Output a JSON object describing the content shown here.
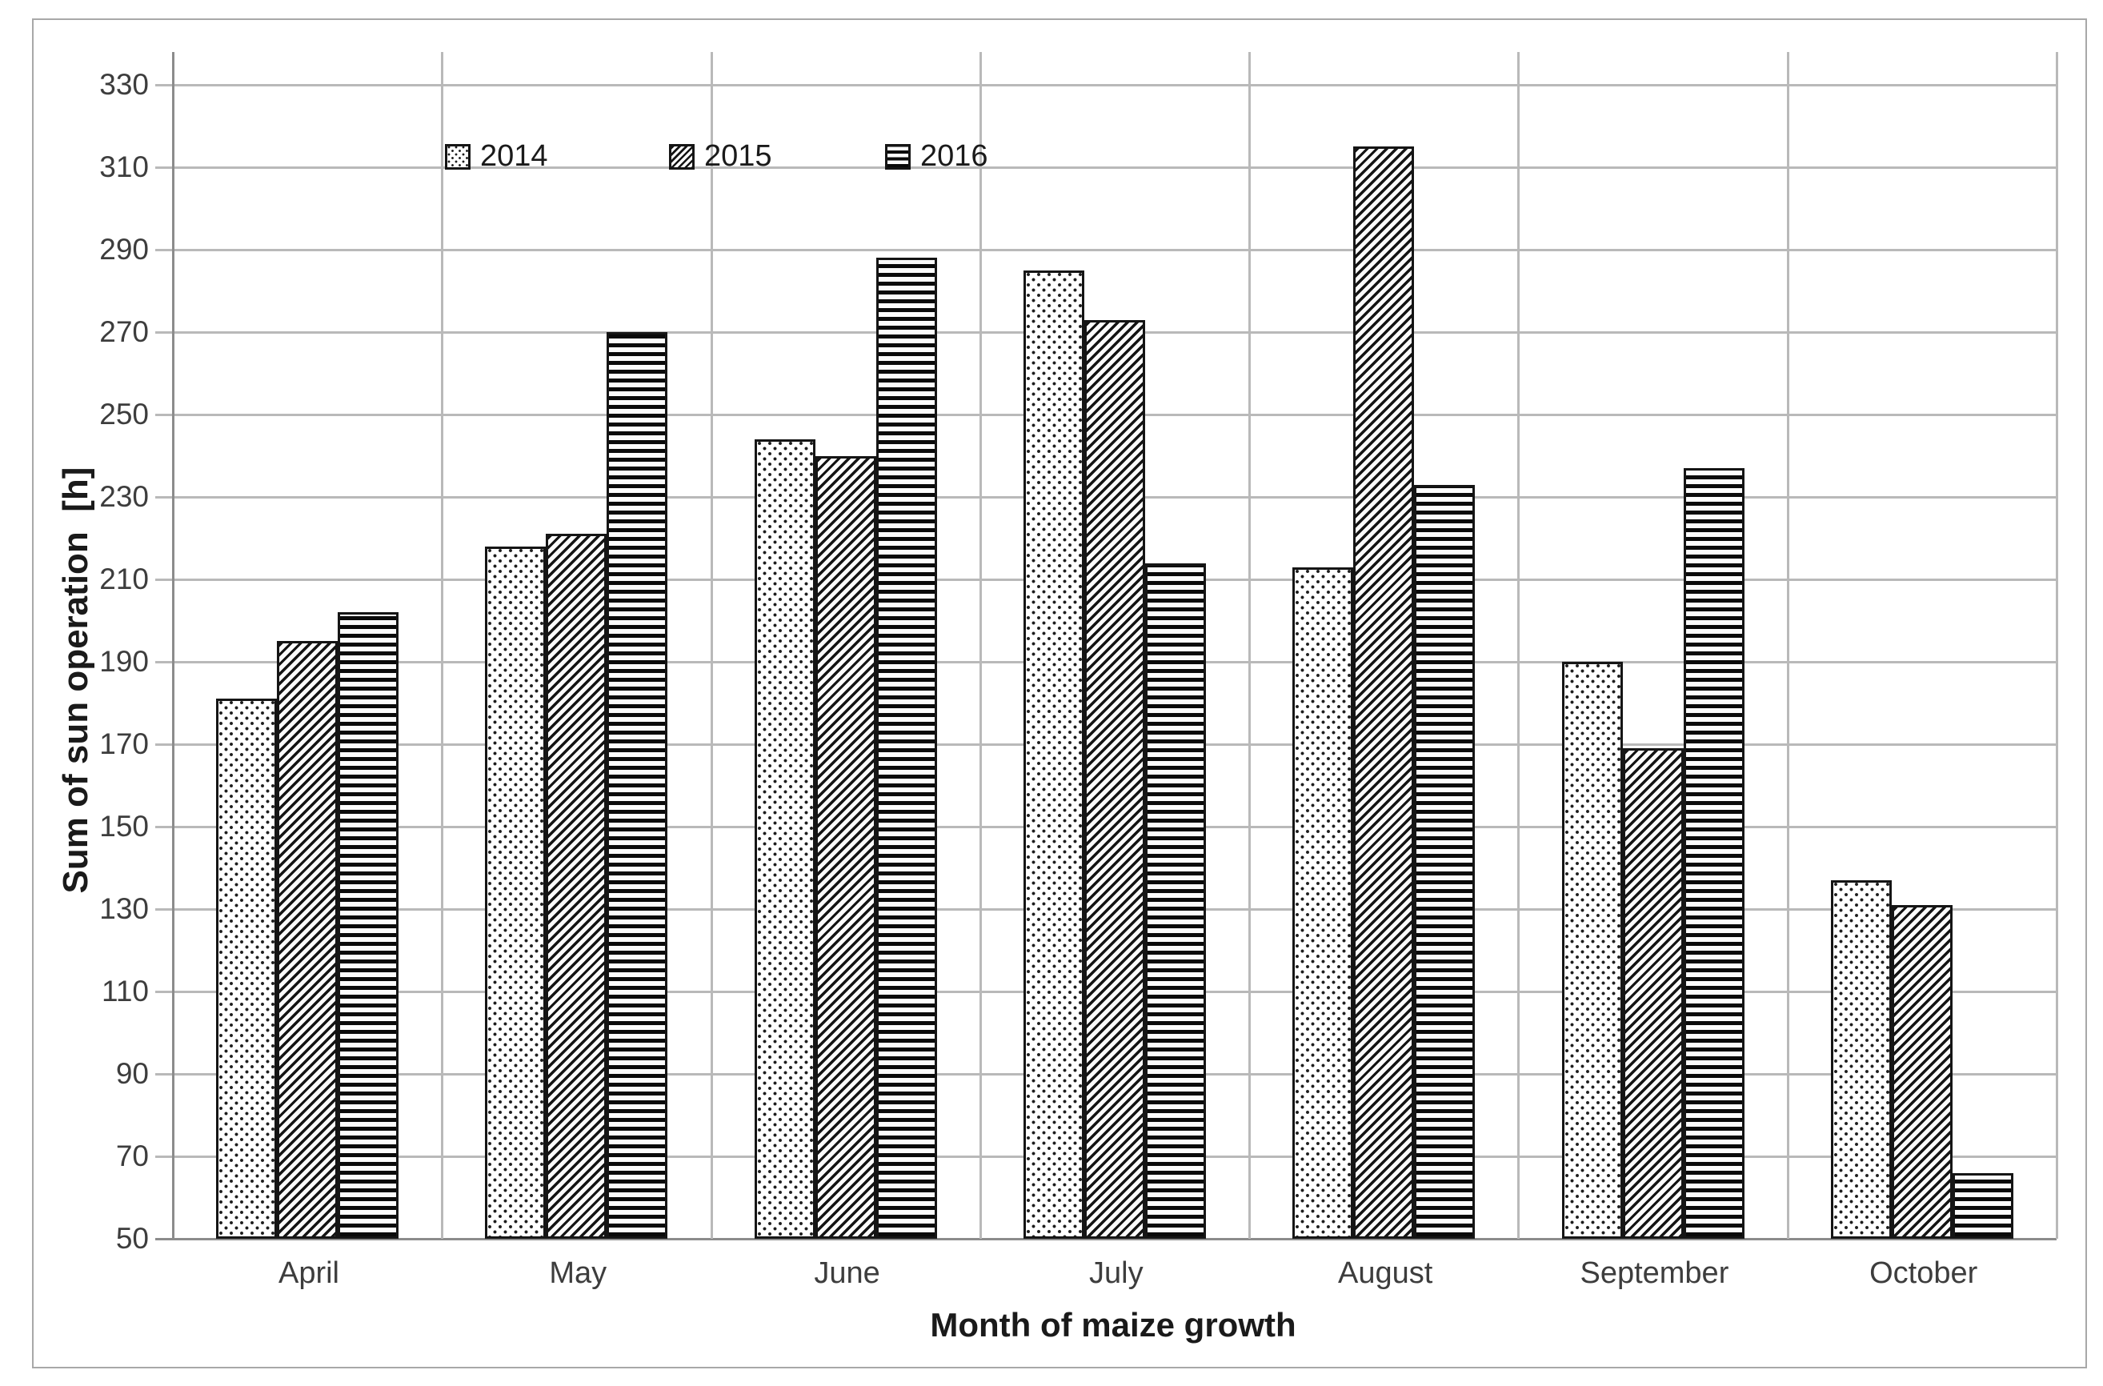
{
  "chart_data": {
    "type": "bar",
    "title": "",
    "xlabel": "Month of maize growth",
    "ylabel": "Sum of sun operation  [h]",
    "categories": [
      "April",
      "May",
      "June",
      "July",
      "August",
      "September",
      "October"
    ],
    "series": [
      {
        "name": "2014",
        "pattern": "dotted",
        "values": [
          181,
          218,
          244,
          285,
          213,
          190,
          137
        ]
      },
      {
        "name": "2015",
        "pattern": "diagonal",
        "values": [
          195,
          221,
          240,
          273,
          315,
          169,
          131
        ]
      },
      {
        "name": "2016",
        "pattern": "horizontal",
        "values": [
          202,
          270,
          288,
          214,
          233,
          237,
          66
        ]
      }
    ],
    "ylim": [
      50,
      338
    ],
    "yticks": [
      50,
      70,
      90,
      110,
      130,
      150,
      170,
      190,
      210,
      230,
      250,
      270,
      290,
      310,
      330
    ],
    "grid": {
      "horizontal": true,
      "vertical_category_boundaries": true
    },
    "legend_position": "inside-top-left"
  },
  "colors": {
    "background": "#ffffff",
    "figure_border": "#a8a8a8",
    "gridline": "#b9b9b9",
    "axis_line": "#8c8c8c",
    "bar_outline": "#151515",
    "tick_text": "#3d3d3d",
    "title_text": "#1a1a1a"
  }
}
